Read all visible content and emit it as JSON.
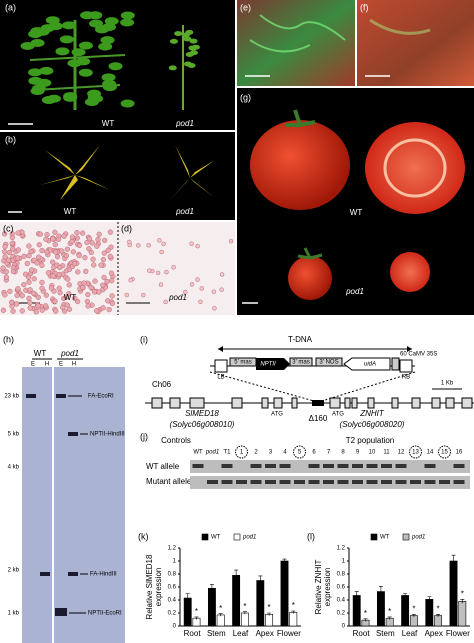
{
  "panel_labels": [
    "(a)",
    "(b)",
    "(c)",
    "(d)",
    "(e)",
    "(f)",
    "(g)",
    "(h)",
    "(i)",
    "(j)"
  ],
  "photo_labels": [
    "WT",
    "pod1",
    "WT",
    "pod1",
    "WT",
    "pod1",
    "WT",
    "pod1"
  ],
  "gel": {
    "genotypes": [
      "WT",
      "pod1"
    ],
    "enzymes": [
      "E",
      "H",
      "E",
      "H"
    ],
    "sizes": [
      "23 kb",
      "5 kb",
      "4 kb",
      "2 kb",
      "1 kb"
    ],
    "bands": [
      "FA-EcoRI",
      "NPTII-HindIII",
      "FA-HindIII",
      "NPTII-EcoRI"
    ]
  },
  "construct": {
    "title": "T-DNA",
    "elements": [
      "LB",
      "5' mas",
      "NPTII",
      "3' mas",
      "3' NOS",
      "uidA",
      "60 CaMV 35S",
      "RB"
    ],
    "chromosome": "Ch06",
    "scale": "1 Kb",
    "genes": [
      "SlMED18",
      "(Solyc06g008010)",
      "ZNHIT",
      "(Solyc06g008020)"
    ],
    "atg": [
      "ATG",
      "ATG"
    ],
    "deletion": "Δ160"
  },
  "genotyping": {
    "groups": [
      "Controls",
      "T2 population"
    ],
    "lanes": [
      "WT",
      "pod1",
      "T1",
      "1",
      "2",
      "3",
      "4",
      "5",
      "6",
      "7",
      "8",
      "9",
      "10",
      "11",
      "12",
      "13",
      "14",
      "15",
      "16"
    ],
    "rows": [
      "WT allele",
      "Mutant allele"
    ]
  },
  "chart_data": [
    {
      "type": "bar",
      "title": "(k)",
      "ylabel": [
        "Relative SlMED18",
        "expression"
      ],
      "categories": [
        "Root",
        "Stem",
        "Leaf",
        "Apex",
        "Flower"
      ],
      "series": [
        {
          "name": "WT",
          "color": "#000000",
          "values": [
            0.43,
            0.58,
            0.78,
            0.7,
            1.0
          ],
          "errors": [
            0.07,
            0.06,
            0.08,
            0.07,
            0.03
          ]
        },
        {
          "name": "pod1",
          "color": "#ffffff",
          "values": [
            0.12,
            0.17,
            0.2,
            0.18,
            0.21
          ],
          "errors": [
            0.02,
            0.02,
            0.02,
            0.02,
            0.02
          ],
          "markers": [
            "*",
            "*",
            "*",
            "*",
            "*"
          ]
        }
      ],
      "ylim": [
        0,
        1.2
      ],
      "yticks": [
        0,
        0.2,
        0.4,
        0.6,
        0.8,
        1,
        1.2
      ]
    },
    {
      "type": "bar",
      "title": "(l)",
      "ylabel": [
        "Relative ZNHIT",
        "expression"
      ],
      "categories": [
        "Root",
        "Stem",
        "Leaf",
        "Apex",
        "Flower"
      ],
      "series": [
        {
          "name": "WT",
          "color": "#000000",
          "values": [
            0.47,
            0.53,
            0.47,
            0.41,
            1.0
          ],
          "errors": [
            0.06,
            0.08,
            0.03,
            0.04,
            0.09
          ]
        },
        {
          "name": "pod1",
          "color": "#bfbfbf",
          "values": [
            0.09,
            0.12,
            0.16,
            0.16,
            0.38
          ],
          "errors": [
            0.02,
            0.02,
            0.02,
            0.02,
            0.03
          ],
          "markers": [
            "*",
            "*",
            "*",
            "*",
            "*"
          ]
        }
      ],
      "ylim": [
        0,
        1.2
      ],
      "yticks": [
        0,
        0.2,
        0.4,
        0.6,
        0.8,
        1,
        1.2
      ]
    }
  ]
}
